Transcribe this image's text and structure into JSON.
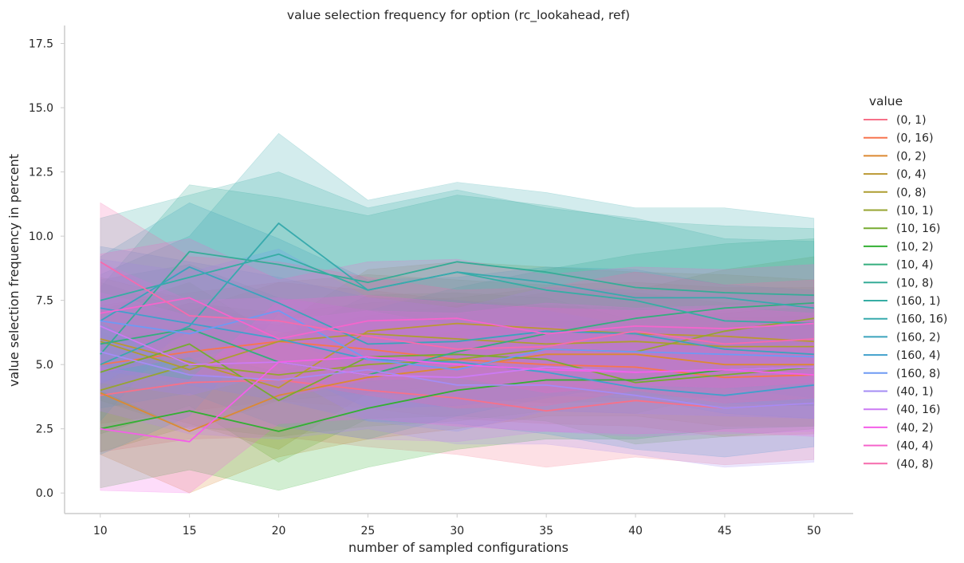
{
  "chart_data": {
    "type": "line",
    "title": "value selection frequency for option (rc_lookahead, ref)",
    "xlabel": "number of sampled configurations",
    "ylabel": "value selection frequency in percent",
    "xlim": [
      8,
      52.2
    ],
    "ylim": [
      -0.8,
      18.2
    ],
    "x_ticks": [
      10,
      15,
      20,
      25,
      30,
      35,
      40,
      45,
      50
    ],
    "y_ticks": [
      0.0,
      2.5,
      5.0,
      7.5,
      10.0,
      12.5,
      15.0,
      17.5
    ],
    "y_tick_labels": [
      "0.0",
      "2.5",
      "5.0",
      "7.5",
      "10.0",
      "12.5",
      "15.0",
      "17.5"
    ],
    "grid": false,
    "legend_title": "value",
    "legend_position": "right",
    "x": [
      10,
      15,
      20,
      25,
      30,
      35,
      40,
      45,
      50
    ],
    "series": [
      {
        "name": "(0, 1)",
        "color": "#f77189",
        "values": [
          3.8,
          4.3,
          4.4,
          4.0,
          3.7,
          3.2,
          3.6,
          3.3,
          3.5
        ],
        "band": 2.2
      },
      {
        "name": "(0, 16)",
        "color": "#f7754f",
        "values": [
          5.0,
          5.5,
          5.9,
          5.6,
          5.2,
          5.0,
          4.9,
          4.5,
          4.6
        ],
        "band": 2.3
      },
      {
        "name": "(0, 2)",
        "color": "#dc8932",
        "values": [
          3.9,
          2.4,
          3.8,
          4.5,
          4.9,
          5.4,
          5.4,
          5.0,
          5.0
        ],
        "band": 2.4
      },
      {
        "name": "(0, 4)",
        "color": "#bb9832",
        "values": [
          6.0,
          5.1,
          4.1,
          6.3,
          6.6,
          6.4,
          6.2,
          6.1,
          5.9
        ],
        "band": 2.4
      },
      {
        "name": "(0, 8)",
        "color": "#ae9d31",
        "values": [
          5.9,
          4.8,
          5.9,
          6.2,
          6.0,
          5.8,
          5.9,
          5.7,
          5.7
        ],
        "band": 2.3
      },
      {
        "name": "(10, 1)",
        "color": "#97a431",
        "values": [
          4.0,
          5.0,
          4.6,
          5.0,
          5.2,
          5.6,
          5.5,
          6.3,
          6.8
        ],
        "band": 2.4
      },
      {
        "name": "(10, 16)",
        "color": "#77ab31",
        "values": [
          4.7,
          5.8,
          3.6,
          5.3,
          5.4,
          5.2,
          4.3,
          4.6,
          4.9
        ],
        "band": 2.4
      },
      {
        "name": "(10, 2)",
        "color": "#33b032",
        "values": [
          2.5,
          3.2,
          2.4,
          3.3,
          4.0,
          4.4,
          4.4,
          4.8,
          4.9
        ],
        "band": 2.3
      },
      {
        "name": "(10, 4)",
        "color": "#34ae7e",
        "values": [
          5.8,
          6.4,
          5.1,
          4.6,
          5.5,
          6.2,
          6.8,
          7.2,
          7.4
        ],
        "band": 2.5
      },
      {
        "name": "(10, 8)",
        "color": "#35ac97",
        "values": [
          5.4,
          9.4,
          8.9,
          8.2,
          9.0,
          8.6,
          8.0,
          7.8,
          7.7
        ],
        "band": 2.6
      },
      {
        "name": "(160, 1)",
        "color": "#36ada4",
        "values": [
          7.5,
          8.4,
          9.3,
          7.9,
          8.6,
          7.9,
          7.5,
          6.7,
          6.6
        ],
        "band": 3.2
      },
      {
        "name": "(160, 16)",
        "color": "#38aaad",
        "values": [
          5.0,
          6.5,
          10.5,
          7.9,
          8.6,
          8.2,
          7.6,
          7.6,
          7.2
        ],
        "band": 3.5
      },
      {
        "name": "(160, 2)",
        "color": "#3ba3bc",
        "values": [
          6.7,
          8.8,
          7.4,
          5.8,
          5.9,
          6.3,
          6.2,
          5.6,
          5.4
        ],
        "band": 2.5
      },
      {
        "name": "(160, 4)",
        "color": "#41a0cc",
        "values": [
          7.2,
          6.6,
          6.0,
          5.2,
          5.1,
          4.7,
          4.1,
          3.8,
          4.2
        ],
        "band": 2.4
      },
      {
        "name": "(160, 8)",
        "color": "#6e9af4",
        "values": [
          6.7,
          6.2,
          7.1,
          5.2,
          4.8,
          5.6,
          5.5,
          5.4,
          5.3
        ],
        "band": 2.4
      },
      {
        "name": "(40, 1)",
        "color": "#a48cf4",
        "values": [
          5.5,
          4.6,
          4.4,
          4.8,
          4.2,
          4.2,
          3.8,
          3.3,
          3.5
        ],
        "band": 2.3
      },
      {
        "name": "(40, 16)",
        "color": "#cc7af4",
        "values": [
          6.5,
          5.0,
          5.1,
          4.6,
          4.5,
          4.9,
          4.7,
          4.8,
          4.9
        ],
        "band": 2.5
      },
      {
        "name": "(40, 2)",
        "color": "#f45fe8",
        "values": [
          2.5,
          2.0,
          5.1,
          5.3,
          5.0,
          4.8,
          4.7,
          4.8,
          4.6
        ],
        "band": 2.4
      },
      {
        "name": "(40, 4)",
        "color": "#f565cc",
        "values": [
          7.0,
          7.6,
          6.0,
          6.7,
          6.8,
          6.2,
          6.5,
          6.4,
          6.6
        ],
        "band": 2.3
      },
      {
        "name": "(40, 8)",
        "color": "#f66bad",
        "values": [
          9.0,
          6.9,
          6.7,
          6.1,
          5.6,
          5.7,
          6.3,
          5.8,
          6.0
        ],
        "band": 2.3
      }
    ]
  }
}
